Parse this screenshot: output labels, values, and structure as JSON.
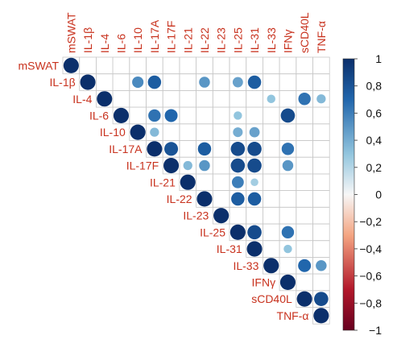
{
  "chart_data": {
    "type": "heatmap",
    "variables": [
      "mSWAT",
      "IL-1β",
      "IL-4",
      "IL-6",
      "IL-10",
      "IL-17A",
      "IL-17F",
      "IL-21",
      "IL-22",
      "IL-23",
      "IL-25",
      "IL-31",
      "IL-33",
      "IFNγ",
      "sCD40L",
      "TNF-α"
    ],
    "cells": [
      {
        "row": "mSWAT",
        "col": "mSWAT",
        "value": 1.0
      },
      {
        "row": "IL-1β",
        "col": "IL-1β",
        "value": 1.0
      },
      {
        "row": "IL-1β",
        "col": "IL-10",
        "value": 0.55
      },
      {
        "row": "IL-1β",
        "col": "IL-17A",
        "value": 0.75
      },
      {
        "row": "IL-1β",
        "col": "IL-22",
        "value": 0.5
      },
      {
        "row": "IL-1β",
        "col": "IL-25",
        "value": 0.45
      },
      {
        "row": "IL-1β",
        "col": "IL-31",
        "value": 0.75
      },
      {
        "row": "IL-4",
        "col": "IL-4",
        "value": 1.0
      },
      {
        "row": "IL-4",
        "col": "IL-33",
        "value": 0.3
      },
      {
        "row": "IL-4",
        "col": "sCD40L",
        "value": 0.65
      },
      {
        "row": "IL-4",
        "col": "TNF-α",
        "value": 0.35
      },
      {
        "row": "IL-6",
        "col": "IL-6",
        "value": 1.0
      },
      {
        "row": "IL-6",
        "col": "IL-17A",
        "value": 0.65
      },
      {
        "row": "IL-6",
        "col": "IL-17F",
        "value": 0.7
      },
      {
        "row": "IL-6",
        "col": "IL-25",
        "value": 0.3
      },
      {
        "row": "IL-6",
        "col": "IFNγ",
        "value": 0.85
      },
      {
        "row": "IL-10",
        "col": "IL-10",
        "value": 1.0
      },
      {
        "row": "IL-10",
        "col": "IL-17A",
        "value": 0.35
      },
      {
        "row": "IL-10",
        "col": "IL-25",
        "value": 0.4
      },
      {
        "row": "IL-10",
        "col": "IL-31",
        "value": 0.45
      },
      {
        "row": "IL-17A",
        "col": "IL-17A",
        "value": 1.0
      },
      {
        "row": "IL-17A",
        "col": "IL-17F",
        "value": 0.8
      },
      {
        "row": "IL-17A",
        "col": "IL-22",
        "value": 0.75
      },
      {
        "row": "IL-17A",
        "col": "IL-25",
        "value": 0.85
      },
      {
        "row": "IL-17A",
        "col": "IL-31",
        "value": 0.85
      },
      {
        "row": "IL-17A",
        "col": "IFNγ",
        "value": 0.65
      },
      {
        "row": "IL-17F",
        "col": "IL-17F",
        "value": 1.0
      },
      {
        "row": "IL-17F",
        "col": "IL-21",
        "value": 0.35
      },
      {
        "row": "IL-17F",
        "col": "IL-22",
        "value": 0.5
      },
      {
        "row": "IL-17F",
        "col": "IL-25",
        "value": 0.85
      },
      {
        "row": "IL-17F",
        "col": "IL-31",
        "value": 0.85
      },
      {
        "row": "IL-17F",
        "col": "IFNγ",
        "value": 0.5
      },
      {
        "row": "IL-21",
        "col": "IL-21",
        "value": 1.0
      },
      {
        "row": "IL-21",
        "col": "IL-25",
        "value": 0.6
      },
      {
        "row": "IL-21",
        "col": "IL-31",
        "value": 0.25
      },
      {
        "row": "IL-22",
        "col": "IL-22",
        "value": 1.0
      },
      {
        "row": "IL-22",
        "col": "IL-25",
        "value": 0.75
      },
      {
        "row": "IL-22",
        "col": "IL-31",
        "value": 0.75
      },
      {
        "row": "IL-23",
        "col": "IL-23",
        "value": 1.0
      },
      {
        "row": "IL-25",
        "col": "IL-25",
        "value": 1.0
      },
      {
        "row": "IL-25",
        "col": "IL-31",
        "value": 0.85
      },
      {
        "row": "IL-25",
        "col": "IFNγ",
        "value": 0.65
      },
      {
        "row": "IL-31",
        "col": "IL-31",
        "value": 1.0
      },
      {
        "row": "IL-31",
        "col": "IFNγ",
        "value": 0.3
      },
      {
        "row": "IL-33",
        "col": "IL-33",
        "value": 1.0
      },
      {
        "row": "IL-33",
        "col": "sCD40L",
        "value": 0.7
      },
      {
        "row": "IL-33",
        "col": "TNF-α",
        "value": 0.5
      },
      {
        "row": "IFNγ",
        "col": "IFNγ",
        "value": 1.0
      },
      {
        "row": "sCD40L",
        "col": "sCD40L",
        "value": 1.0
      },
      {
        "row": "sCD40L",
        "col": "TNF-α",
        "value": 0.85
      },
      {
        "row": "TNF-α",
        "col": "TNF-α",
        "value": 1.0
      }
    ],
    "colorbar": {
      "ticks": [
        "1",
        "0,8",
        "0,6",
        "0,4",
        "0,2",
        "0",
        "−0,2",
        "−0,4",
        "−0,6",
        "−0,8",
        "−1"
      ],
      "range": [
        -1,
        1
      ],
      "colors": {
        "max": "#0b2f6b",
        "high": "#2166ac",
        "mid_high": "#92c5de",
        "zero": "#f7f7f7",
        "mid_low": "#f4a582",
        "low": "#b2182b",
        "min": "#67001f"
      }
    },
    "colors": {
      "label": "#c8321e",
      "grid": "#c8c8c8",
      "tick": "#111111"
    }
  }
}
